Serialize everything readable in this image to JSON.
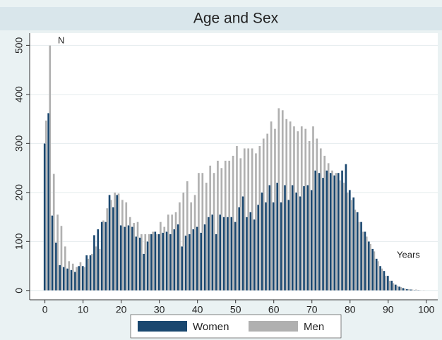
{
  "chart_data": {
    "type": "bar",
    "title": "Age and Sex",
    "annotations": [
      "N",
      "Years"
    ],
    "x": [
      0,
      1,
      2,
      3,
      4,
      5,
      6,
      7,
      8,
      9,
      10,
      11,
      12,
      13,
      14,
      15,
      16,
      17,
      18,
      19,
      20,
      21,
      22,
      23,
      24,
      25,
      26,
      27,
      28,
      29,
      30,
      31,
      32,
      33,
      34,
      35,
      36,
      37,
      38,
      39,
      40,
      41,
      42,
      43,
      44,
      45,
      46,
      47,
      48,
      49,
      50,
      51,
      52,
      53,
      54,
      55,
      56,
      57,
      58,
      59,
      60,
      61,
      62,
      63,
      64,
      65,
      66,
      67,
      68,
      69,
      70,
      71,
      72,
      73,
      74,
      75,
      76,
      77,
      78,
      79,
      80,
      81,
      82,
      83,
      84,
      85,
      86,
      87,
      88,
      89,
      90,
      91,
      92,
      93,
      94,
      95,
      96,
      97,
      98,
      99,
      100
    ],
    "series": [
      {
        "name": "Women",
        "color": "#1a476f",
        "values": [
          300,
          362,
          153,
          98,
          52,
          48,
          45,
          42,
          38,
          50,
          50,
          72,
          72,
          113,
          125,
          140,
          140,
          195,
          170,
          195,
          133,
          130,
          133,
          130,
          110,
          108,
          75,
          100,
          115,
          120,
          115,
          118,
          120,
          115,
          125,
          135,
          90,
          112,
          115,
          125,
          130,
          118,
          135,
          150,
          155,
          115,
          155,
          150,
          150,
          150,
          140,
          170,
          192,
          150,
          160,
          145,
          175,
          200,
          180,
          215,
          180,
          220,
          180,
          215,
          185,
          215,
          200,
          192,
          213,
          215,
          205,
          245,
          240,
          230,
          245,
          240,
          235,
          240,
          245,
          258,
          205,
          190,
          160,
          140,
          120,
          100,
          85,
          65,
          50,
          40,
          30,
          20,
          12,
          8,
          5,
          3,
          2,
          1,
          1,
          0,
          0
        ]
      },
      {
        "name": "Men",
        "color": "#b0b0b0",
        "values": [
          347,
          500,
          238,
          155,
          132,
          90,
          60,
          55,
          48,
          58,
          48,
          65,
          75,
          90,
          85,
          143,
          168,
          185,
          200,
          198,
          185,
          180,
          150,
          138,
          140,
          115,
          115,
          115,
          120,
          115,
          140,
          130,
          155,
          155,
          160,
          180,
          200,
          223,
          180,
          195,
          240,
          240,
          220,
          255,
          240,
          265,
          250,
          265,
          265,
          275,
          295,
          270,
          290,
          290,
          290,
          280,
          295,
          310,
          320,
          345,
          330,
          372,
          368,
          350,
          345,
          335,
          325,
          335,
          330,
          305,
          335,
          310,
          290,
          275,
          260,
          245,
          240,
          225,
          220,
          200,
          185,
          165,
          140,
          120,
          110,
          95,
          80,
          60,
          45,
          30,
          20,
          15,
          10,
          7,
          4,
          3,
          2,
          2,
          1,
          1,
          0
        ]
      }
    ],
    "xlim": [
      -4,
      103
    ],
    "ylim": [
      -19,
      525
    ],
    "xticks": [
      0,
      10,
      20,
      30,
      40,
      50,
      60,
      70,
      80,
      90,
      100
    ],
    "yticks": [
      0,
      100,
      200,
      300,
      400,
      500
    ],
    "grid": true,
    "legend": "bottom"
  }
}
